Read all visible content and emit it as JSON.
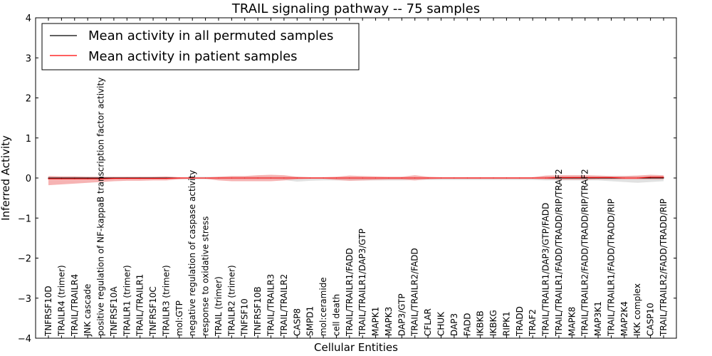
{
  "chart_data": {
    "type": "line",
    "title": "TRAIL signaling pathway -- 75 samples",
    "xlabel": "Cellular Entities",
    "ylabel": "Inferred Activity",
    "ylim": [
      -4,
      4
    ],
    "yticks": [
      -4,
      -3,
      -2,
      -1,
      0,
      1,
      2,
      3,
      4
    ],
    "grid": false,
    "legend_position": "top-left",
    "colors": {
      "permuted_line": "#000000",
      "permuted_band": "#c8c8c8",
      "patient_line": "#ff0000",
      "patient_band": "#f08080"
    },
    "categories": [
      "TNFRSF10D",
      "TRAILR4 (trimer)",
      "TRAIL/TRAILR4",
      "JNK cascade",
      "positive regulation of NF-kappaB transcription factor activity",
      "TNFRSF10A",
      "TRAILR1 (trimer)",
      "TRAIL/TRAILR1",
      "TNFRSF10C",
      "TRAILR3 (trimer)",
      "mol:GTP",
      "negative regulation of caspase activity",
      "response to oxidative stress",
      "TRAIL (trimer)",
      "TRAILR2 (trimer)",
      "TNFSF10",
      "TNFRSF10B",
      "TRAIL/TRAILR3",
      "TRAIL/TRAILR2",
      "CASP8",
      "SMPD1",
      "mol:ceramide",
      "cell death",
      "TRAIL/TRAILR1/FADD",
      "TRAIL/TRAILR1/DAP3/GTP",
      "MAPK1",
      "MAPK3",
      "DAP3/GTP",
      "TRAIL/TRAILR2/FADD",
      "CFLAR",
      "CHUK",
      "DAP3",
      "FADD",
      "IKBKB",
      "IKBKG",
      "RIPK1",
      "TRADD",
      "TRAF2",
      "TRAIL/TRAILR1/DAP3/GTP/FADD",
      "TRAIL/TRAILR1/FADD/TRADD/RIP/TRAF2",
      "MAPK8",
      "TRAIL/TRAILR2/FADD/TRADD/RIP/TRAF2",
      "MAP3K1",
      "TRAIL/TRAILR1/FADD/TRADD/RIP",
      "MAP2K4",
      "IKK complex",
      "CASP10",
      "TRAIL/TRAILR2/FADD/TRADD/RIP"
    ],
    "series": [
      {
        "name": "Mean activity in all permuted samples",
        "values": [
          0,
          0,
          0,
          0,
          0,
          0,
          0,
          0,
          0,
          0,
          0,
          0,
          0,
          0,
          0,
          0,
          0,
          0,
          0,
          0,
          0,
          0,
          0,
          0,
          0,
          0,
          0,
          0,
          0,
          0,
          0,
          0,
          0,
          0,
          0,
          0,
          0,
          0,
          0,
          0,
          0,
          0,
          0,
          0,
          0,
          0,
          0,
          0
        ],
        "band_upper": [
          0.03,
          0.03,
          0.03,
          0.03,
          0.02,
          0.02,
          0.02,
          0.02,
          0.02,
          0.02,
          0.02,
          0.03,
          0.03,
          0.03,
          0.03,
          0.03,
          0.03,
          0.03,
          0.03,
          0.03,
          0.02,
          0.02,
          0.02,
          0.02,
          0.02,
          0.02,
          0.02,
          0.02,
          0.02,
          0.02,
          0.02,
          0.02,
          0.02,
          0.02,
          0.02,
          0.02,
          0.02,
          0.02,
          0.04,
          0.05,
          0.05,
          0.05,
          0.05,
          0.05,
          0.05,
          0.05,
          0.05,
          0.05
        ],
        "band_lower": [
          -0.03,
          -0.03,
          -0.03,
          -0.03,
          -0.02,
          -0.02,
          -0.02,
          -0.02,
          -0.02,
          -0.02,
          -0.03,
          -0.03,
          -0.03,
          -0.03,
          -0.03,
          -0.03,
          -0.03,
          -0.03,
          -0.05,
          -0.09,
          -0.07,
          -0.06,
          -0.06,
          -0.06,
          -0.06,
          -0.06,
          -0.06,
          -0.06,
          -0.05,
          -0.05,
          -0.05,
          -0.05,
          -0.05,
          -0.05,
          -0.05,
          -0.05,
          -0.05,
          -0.05,
          -0.06,
          -0.06,
          -0.06,
          -0.06,
          -0.06,
          -0.08,
          -0.1,
          -0.12,
          -0.1,
          -0.08
        ],
        "color_key": "permuted_line",
        "band_color_key": "permuted_band"
      },
      {
        "name": "Mean activity in patient samples",
        "values": [
          -0.02,
          -0.02,
          -0.02,
          -0.02,
          -0.02,
          -0.01,
          -0.01,
          -0.01,
          -0.01,
          -0.01,
          0,
          0,
          0,
          0,
          0,
          0,
          0,
          0,
          0,
          0,
          0,
          0,
          0,
          0,
          0,
          0,
          0,
          0,
          0,
          0,
          0,
          0,
          0,
          0,
          0,
          0,
          0,
          0,
          0,
          0.01,
          0.01,
          0.01,
          0.01,
          0.01,
          0,
          0,
          0.02,
          0.02
        ],
        "band_upper": [
          0.05,
          0.04,
          0.04,
          0.03,
          0.03,
          0.03,
          0.03,
          0.03,
          0.03,
          0.04,
          0.02,
          0.01,
          0.01,
          0.03,
          0.05,
          0.05,
          0.07,
          0.08,
          0.07,
          0.03,
          0.02,
          0.02,
          0.03,
          0.06,
          0.05,
          0.04,
          0.03,
          0.03,
          0.07,
          0.03,
          0.02,
          0.02,
          0.02,
          0.02,
          0.02,
          0.02,
          0.02,
          0.02,
          0.06,
          0.07,
          0.07,
          0.07,
          0.06,
          0.05,
          0.05,
          0.06,
          0.08,
          0.07
        ],
        "band_lower": [
          -0.18,
          -0.16,
          -0.14,
          -0.12,
          -0.1,
          -0.08,
          -0.07,
          -0.07,
          -0.06,
          -0.06,
          -0.03,
          -0.02,
          -0.02,
          -0.06,
          -0.08,
          -0.08,
          -0.08,
          -0.08,
          -0.06,
          -0.03,
          -0.02,
          -0.02,
          -0.05,
          -0.07,
          -0.06,
          -0.05,
          -0.04,
          -0.04,
          -0.06,
          -0.03,
          -0.02,
          -0.02,
          -0.02,
          -0.02,
          -0.02,
          -0.02,
          -0.02,
          -0.02,
          -0.03,
          -0.04,
          -0.04,
          -0.04,
          -0.03,
          -0.03,
          -0.03,
          -0.03,
          -0.03,
          -0.03
        ],
        "color_key": "patient_line",
        "band_color_key": "patient_band"
      }
    ]
  }
}
